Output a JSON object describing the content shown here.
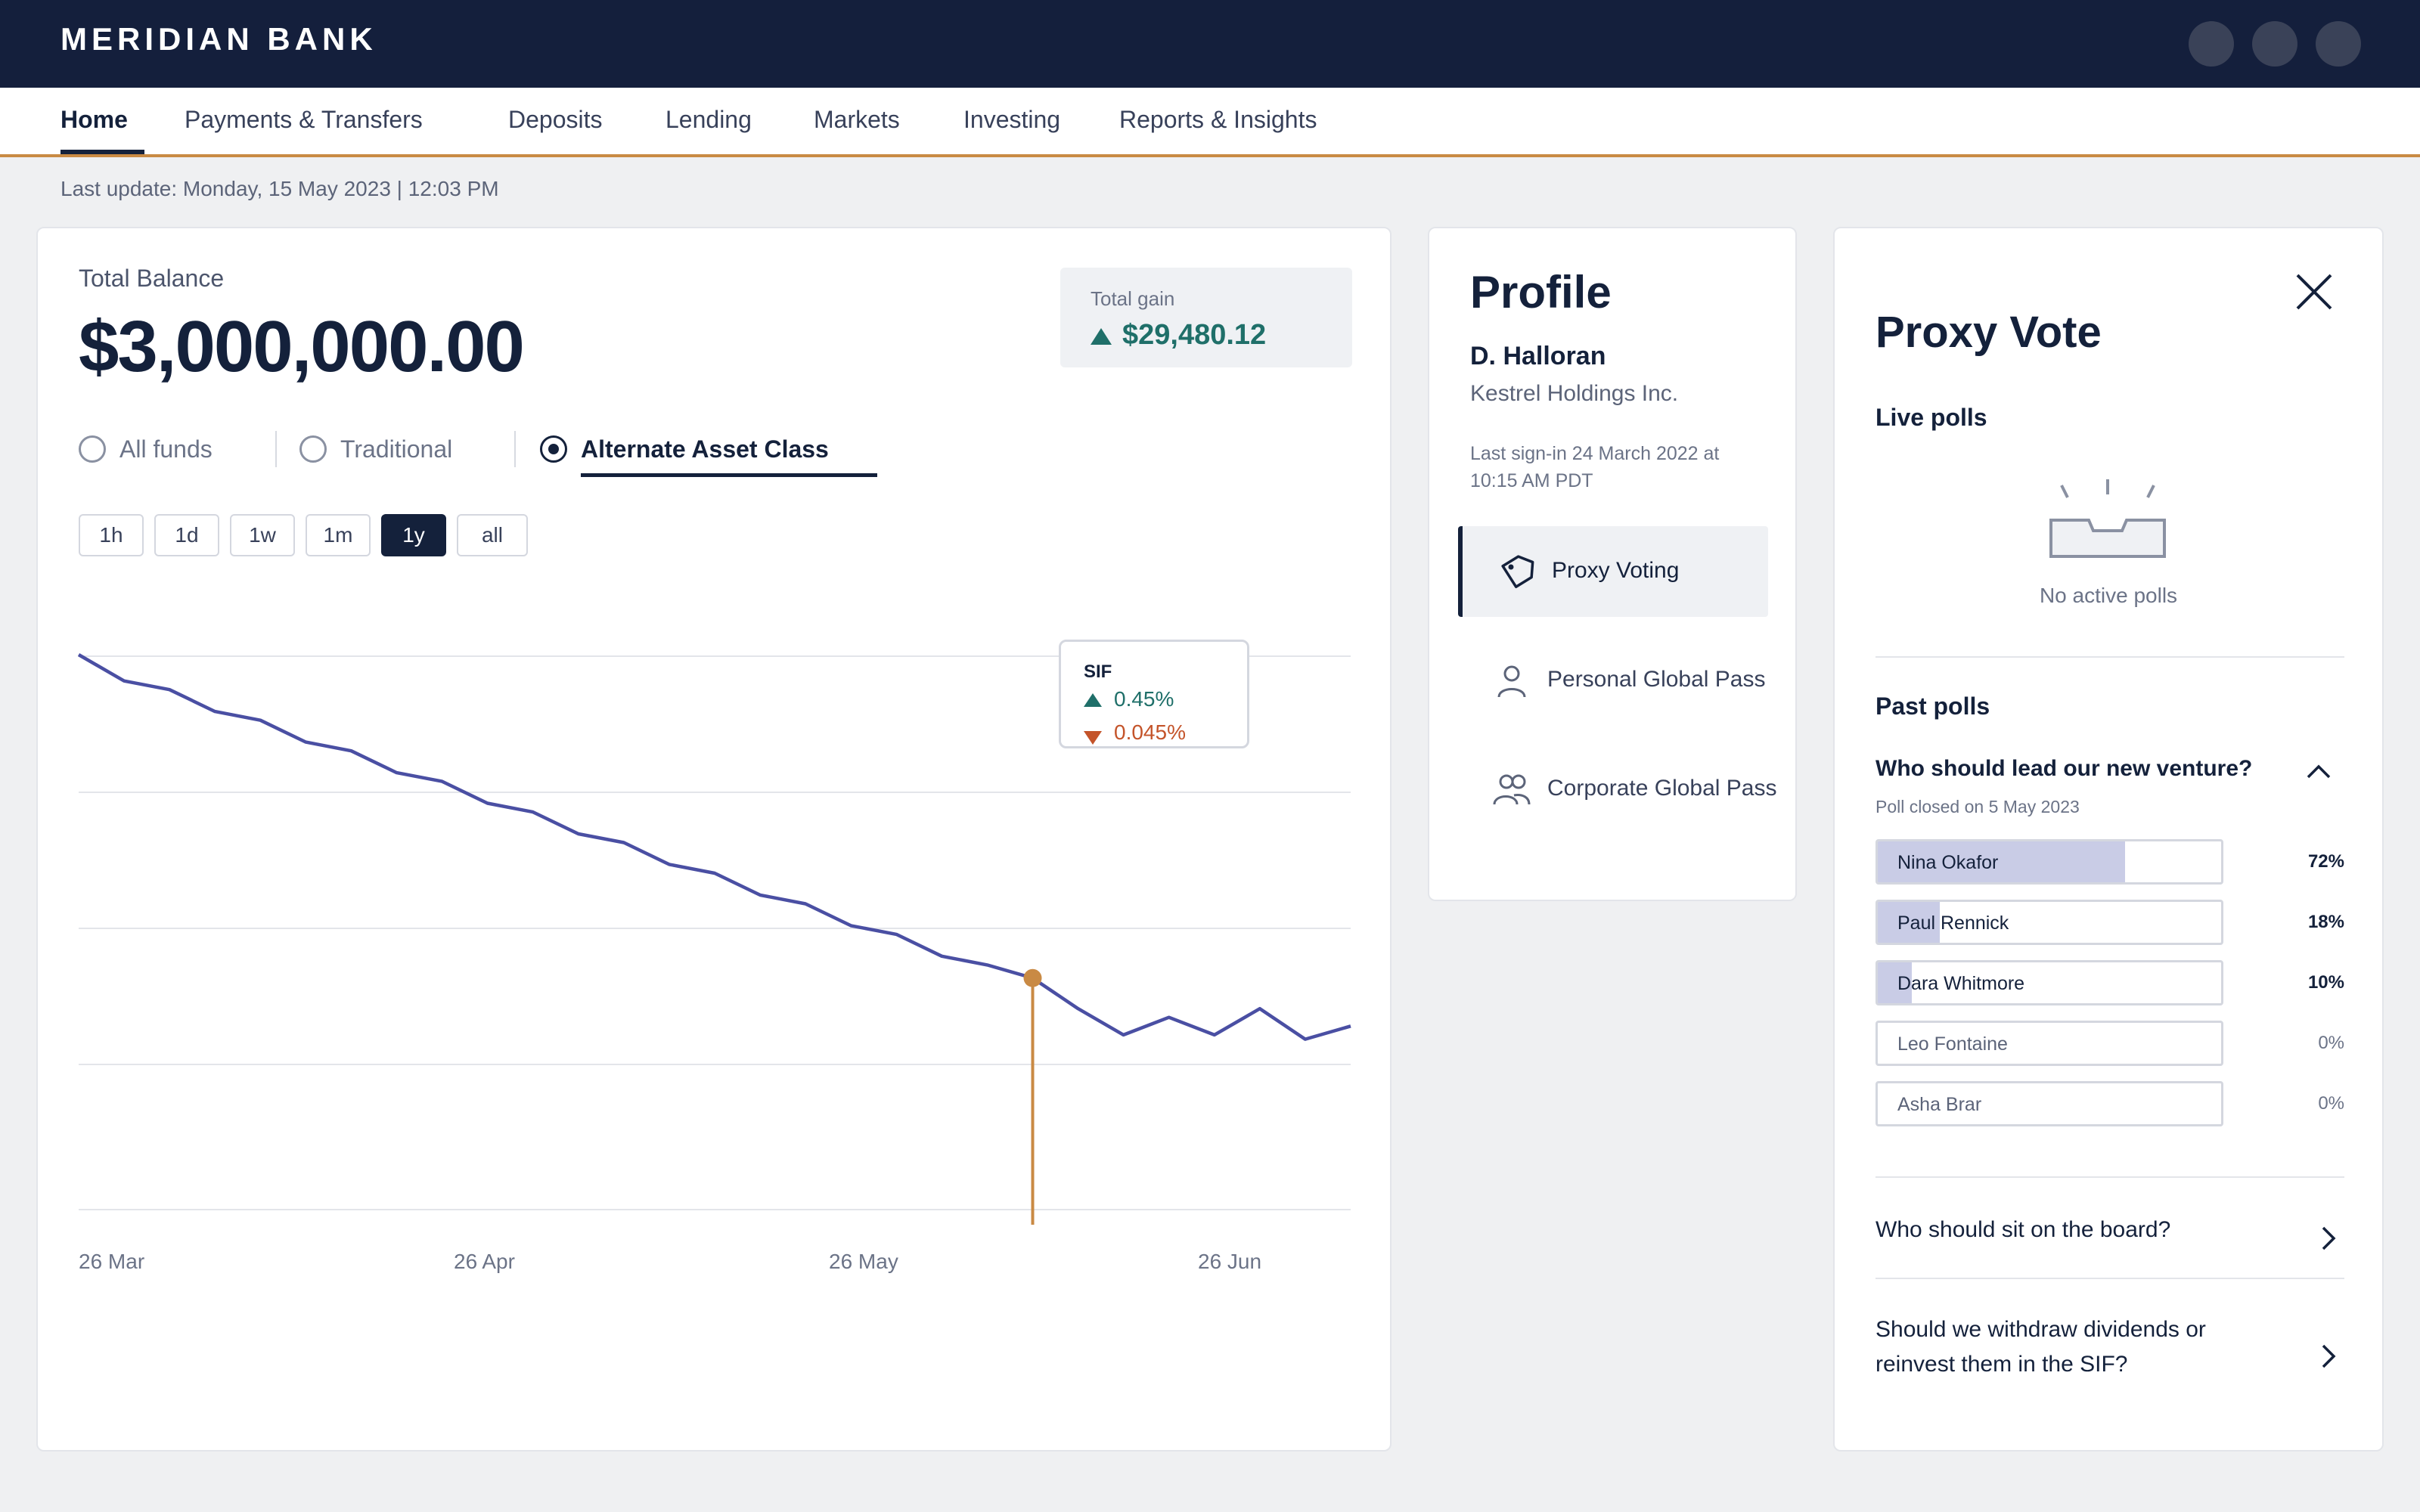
{
  "header": {
    "brand": "MERIDIAN BANK"
  },
  "nav": {
    "tabs": [
      {
        "label": "Home",
        "active": true
      },
      {
        "label": "Payments & Transfers"
      },
      {
        "label": "Deposits"
      },
      {
        "label": "Lending"
      },
      {
        "label": "Markets"
      },
      {
        "label": "Investing"
      },
      {
        "label": "Reports & Insights"
      }
    ]
  },
  "last_update": "Last update: Monday, 15 May 2023 | 12:03 PM",
  "balance": {
    "label": "Total Balance",
    "value": "$3,000,000.00",
    "gain_label": "Total gain",
    "gain_value": "$29,480.12"
  },
  "fund_filter": {
    "options": [
      "All funds",
      "Traditional",
      "Alternate Asset Class"
    ],
    "selected": "Alternate Asset Class"
  },
  "ranges": {
    "options": [
      "1h",
      "1d",
      "1w",
      "1m",
      "1y",
      "all"
    ],
    "selected": "1y"
  },
  "tooltip": {
    "title": "SIF",
    "up_value": "0.45%",
    "down_value": "0.045%"
  },
  "colors": {
    "line": "#4a4fa3",
    "marker": "#c98a44",
    "gain": "#1f6f69",
    "loss": "#c4542a",
    "navy": "#14213b"
  },
  "chart_data": {
    "type": "line",
    "x_tick_labels": [
      "26 Mar",
      "26 Apr",
      "26 May",
      "26 Jun"
    ],
    "series": [
      {
        "values": [
          100,
          94,
          92,
          87,
          85,
          80,
          78,
          73,
          71,
          66,
          64,
          59,
          57,
          52,
          50,
          45,
          43,
          38,
          36,
          31,
          29,
          26,
          19,
          13,
          17,
          13,
          19,
          12,
          15
        ]
      }
    ],
    "highlight_index": 21,
    "grid": true
  },
  "profile": {
    "title": "Profile",
    "name": "D. Halloran",
    "company": "Kestrel Holdings Inc.",
    "last_signin": "Last sign-in 24 March 2022 at 10:15 AM PDT",
    "menu": [
      {
        "label": "Proxy Voting",
        "icon": "tag-icon",
        "active": true
      },
      {
        "label": "Personal Global Pass",
        "icon": "person-icon"
      },
      {
        "label": "Corporate Global Pass",
        "icon": "people-icon"
      }
    ]
  },
  "proxy": {
    "title": "Proxy Vote",
    "live_label": "Live polls",
    "no_active": "No active polls",
    "past_label": "Past polls",
    "expanded_question": "Who should lead our new venture?",
    "expanded_sub": "Poll closed on 5 May 2023",
    "results": [
      {
        "name": "Nina Okafor",
        "pct": "72%",
        "fraction": 0.72
      },
      {
        "name": "Paul Rennick",
        "pct": "18%",
        "fraction": 0.18
      },
      {
        "name": "Dara Whitmore",
        "pct": "10%",
        "fraction": 0.1
      },
      {
        "name": "Leo Fontaine",
        "pct": "0%",
        "fraction": 0
      },
      {
        "name": "Asha Brar",
        "pct": "0%",
        "fraction": 0
      }
    ],
    "collapsed_questions": [
      "Who should sit on the board?",
      "Should we withdraw dividends or reinvest them in the SIF?"
    ]
  }
}
